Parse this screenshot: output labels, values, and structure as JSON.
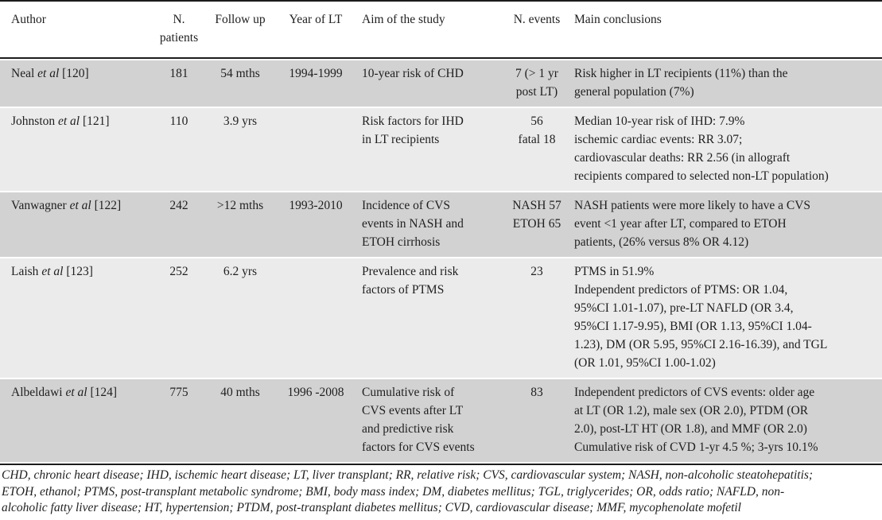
{
  "header": {
    "columns": [
      "Author",
      "N. patients",
      "Follow up",
      "Year of LT",
      "Aim of the study",
      "N. events",
      "Main conclusions"
    ]
  },
  "rows": [
    {
      "author_name": "Neal",
      "author_etal": "et al",
      "author_ref": "[120]",
      "n_patients": "181",
      "follow_up": "54 mths",
      "year_of_lt": "1994-1999",
      "aim": "10-year risk of CHD",
      "n_events": "7 (> 1 yr\npost LT)",
      "conclusions": "Risk higher in LT recipients (11%) than the\ngeneral population (7%)"
    },
    {
      "author_name": "Johnston",
      "author_etal": "et al",
      "author_ref": "[121]",
      "n_patients": "110",
      "follow_up": "3.9 yrs",
      "year_of_lt": "",
      "aim": "Risk factors for IHD\nin LT recipients",
      "n_events": "56\nfatal 18",
      "conclusions": "Median 10-year risk of IHD: 7.9%\nischemic cardiac events: RR 3.07;\ncardiovascular deaths: RR 2.56 (in allograft\nrecipients compared to selected non-LT population)"
    },
    {
      "author_name": "Vanwagner",
      "author_etal": "et al",
      "author_ref": "[122]",
      "n_patients": "242",
      "follow_up": ">12 mths",
      "year_of_lt": "1993-2010",
      "aim": "Incidence of CVS\nevents in NASH and\nETOH cirrhosis",
      "n_events": "NASH 57\nETOH 65",
      "conclusions": "NASH patients were more likely to have a CVS\nevent <1 year after LT, compared to ETOH\npatients, (26% versus 8% OR 4.12)"
    },
    {
      "author_name": "Laish",
      "author_etal": "et al",
      "author_ref": "[123]",
      "n_patients": "252",
      "follow_up": "6.2 yrs",
      "year_of_lt": "",
      "aim": "Prevalence and risk\nfactors of PTMS",
      "n_events": "23",
      "conclusions": "PTMS in 51.9%\nIndependent predictors of PTMS: OR 1.04,\n95%CI 1.01-1.07), pre-LT NAFLD (OR 3.4,\n95%CI 1.17-9.95), BMI (OR 1.13, 95%CI 1.04-\n1.23), DM (OR 5.95, 95%CI 2.16-16.39), and TGL\n(OR 1.01, 95%CI 1.00-1.02)"
    },
    {
      "author_name": "Albeldawi",
      "author_etal": "et al",
      "author_ref": "[124]",
      "n_patients": "775",
      "follow_up": "40 mths",
      "year_of_lt": "1996 -2008",
      "aim": "Cumulative risk of\nCVS events after LT\nand predictive risk\nfactors for CVS events",
      "n_events": "83",
      "conclusions": "Independent predictors of CVS events: older age\nat LT (OR 1.2), male sex (OR 2.0), PTDM (OR\n2.0), post-LT HT (OR 1.8), and MMF (OR 2.0)\nCumulative risk of CVD 1-yr 4.5 %; 3-yrs 10.1%"
    }
  ],
  "footnote": "CHD, chronic heart disease; IHD, ischemic heart disease; LT, liver transplant; RR, relative risk; CVS, cardiovascular system; NASH, non-alcoholic steatohepatitis;\nETOH, ethanol; PTMS, post-transplant metabolic syndrome; BMI, body mass index; DM, diabetes mellitus; TGL, triglycerides; OR, odds ratio; NAFLD, non-\nalcoholic fatty liver disease; HT, hypertension; PTDM, post-transplant diabetes mellitus; CVD, cardiovascular disease; MMF, mycophenolate mofetil",
  "colors": {
    "row_dark": "#d2d2d2",
    "row_light": "#ebebeb",
    "rule": "#1c1c1c",
    "text": "#1f1f1f"
  }
}
